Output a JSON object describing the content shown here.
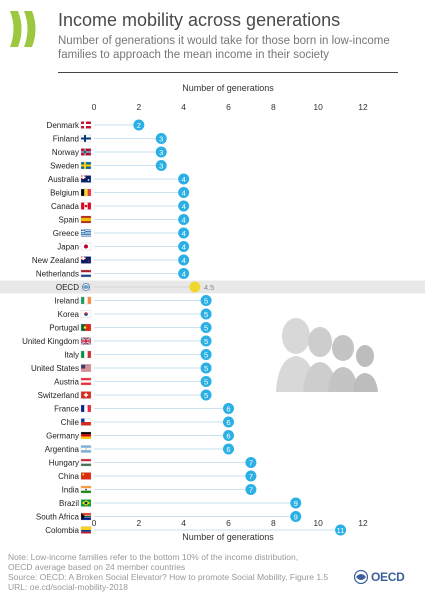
{
  "header": {
    "title": "Income mobility across generations",
    "subtitle": "Number of generations it would take for those born in low-income families to approach the mean income in their society"
  },
  "colors": {
    "bar": "#2ab0e4",
    "oecd_marker": "#f2d62e",
    "highlight_band": "#e8e8e8",
    "logo_green": "#9bc83f",
    "logo_blue": "#3a5f9a"
  },
  "chart_data": {
    "type": "dot",
    "xlabel": "Number of generations",
    "xlim": [
      0,
      12
    ],
    "xticks": [
      0,
      2,
      4,
      6,
      8,
      10,
      12
    ],
    "grid": false,
    "categories": [
      "Denmark",
      "Finland",
      "Norway",
      "Sweden",
      "Australia",
      "Belgium",
      "Canada",
      "Spain",
      "Greece",
      "Japan",
      "New Zealand",
      "Netherlands",
      "OECD",
      "Ireland",
      "Korea",
      "Portugal",
      "United Kingdom",
      "Italy",
      "United States",
      "Austria",
      "Switzerland",
      "France",
      "Chile",
      "Germany",
      "Argentina",
      "Hungary",
      "China",
      "India",
      "Brazil",
      "South Africa",
      "Colombia"
    ],
    "values": [
      2,
      3,
      3,
      3,
      4,
      4,
      4,
      4,
      4,
      4,
      4,
      4,
      4.5,
      5,
      5,
      5,
      5,
      5,
      5,
      5,
      5,
      6,
      6,
      6,
      6,
      7,
      7,
      7,
      9,
      9,
      11
    ],
    "value_labels": [
      "2",
      "3",
      "3",
      "3",
      "4",
      "4",
      "4",
      "4",
      "4",
      "4",
      "4",
      "4",
      "4.5",
      "5",
      "5",
      "5",
      "5",
      "5",
      "5",
      "5",
      "5",
      "6",
      "6",
      "6",
      "6",
      "7",
      "7",
      "7",
      "9",
      "9",
      "11"
    ],
    "highlight": "OECD",
    "flag_icons": [
      "denmark-flag-icon",
      "finland-flag-icon",
      "norway-flag-icon",
      "sweden-flag-icon",
      "australia-flag-icon",
      "belgium-flag-icon",
      "canada-flag-icon",
      "spain-flag-icon",
      "greece-flag-icon",
      "japan-flag-icon",
      "new-zealand-flag-icon",
      "netherlands-flag-icon",
      "oecd-globe-icon",
      "ireland-flag-icon",
      "korea-flag-icon",
      "portugal-flag-icon",
      "united-kingdom-flag-icon",
      "italy-flag-icon",
      "united-states-flag-icon",
      "austria-flag-icon",
      "switzerland-flag-icon",
      "france-flag-icon",
      "chile-flag-icon",
      "germany-flag-icon",
      "argentina-flag-icon",
      "hungary-flag-icon",
      "china-flag-icon",
      "india-flag-icon",
      "brazil-flag-icon",
      "south-africa-flag-icon",
      "colombia-flag-icon"
    ]
  },
  "footer": {
    "note_line1": "Note: Low-income families refer to the bottom 10% of the income distribution,",
    "note_line2": "OECD average based on 24 member countries",
    "source": "Source: OECD: A Broken Social Elevator? How to promote Social Mobility, Figure 1.5",
    "url": "URL: oe.cd/social-mobility-2018"
  },
  "brand": {
    "name": "OECD",
    "logo_icon": "oecd-logo-icon",
    "decoration_icon": "family-silhouette-icon"
  }
}
